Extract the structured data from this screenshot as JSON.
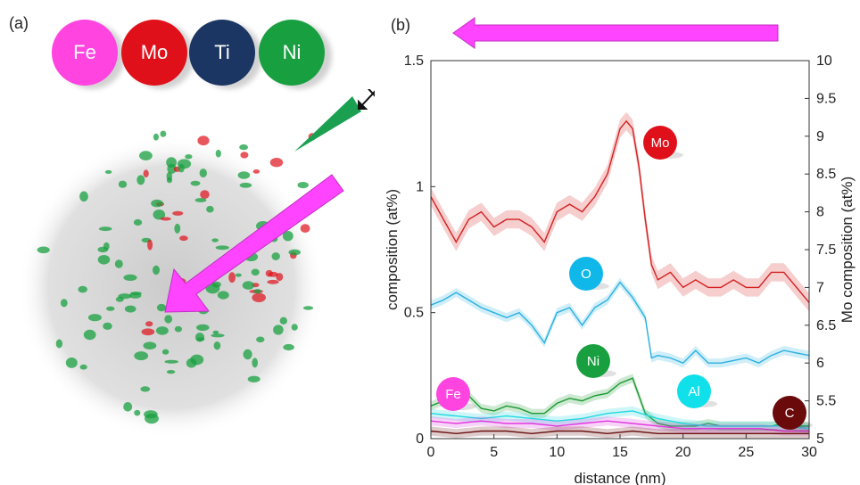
{
  "panel_a": {
    "label": "(a)",
    "elements": [
      {
        "symbol": "Fe",
        "color": "#ff44e0"
      },
      {
        "symbol": "Mo",
        "color": "#e0101a"
      },
      {
        "symbol": "Ti",
        "color": "#1c3664"
      },
      {
        "symbol": "Ni",
        "color": "#18a040"
      }
    ],
    "arrow_color": "#ff44ff",
    "cone_color": "#1aa050"
  },
  "panel_b": {
    "label": "(b)"
  },
  "chart_data": {
    "type": "line",
    "title": "",
    "xlabel": "distance (nm)",
    "ylabel": "composition (at%)",
    "y2label": "Mo composition (at%)",
    "xlim": [
      0,
      30
    ],
    "ylim": [
      0,
      1.5
    ],
    "y2lim": [
      5,
      10
    ],
    "x_ticks": [
      "0",
      "5",
      "10",
      "15",
      "20",
      "25",
      "30"
    ],
    "y_ticks": [
      "0",
      "0.5",
      "1",
      "1.5"
    ],
    "y2_ticks": [
      "5",
      "5.5",
      "6",
      "6.5",
      "7",
      "7.5",
      "8",
      "8.5",
      "9",
      "9.5",
      "10"
    ],
    "grid": false,
    "series": [
      {
        "name": "Mo",
        "axis": "right",
        "color": "#d42020",
        "x": [
          0,
          1,
          2,
          3,
          4,
          5,
          6,
          7,
          8,
          9,
          10,
          11,
          12,
          13,
          14,
          15,
          15.5,
          16,
          16.5,
          17,
          17.5,
          18,
          19,
          20,
          21,
          22,
          23,
          24,
          25,
          26,
          27,
          28,
          29,
          30
        ],
        "y": [
          8.2,
          7.9,
          7.6,
          7.9,
          8.0,
          7.8,
          7.9,
          7.9,
          7.8,
          7.6,
          8.0,
          8.1,
          8.0,
          8.2,
          8.5,
          9.1,
          9.2,
          9.1,
          8.6,
          7.9,
          7.3,
          7.1,
          7.2,
          7.0,
          7.1,
          7.0,
          7.0,
          7.1,
          7.0,
          7.0,
          7.2,
          7.2,
          7.0,
          6.8
        ]
      },
      {
        "name": "O",
        "axis": "left",
        "color": "#2ab0e0",
        "x": [
          0,
          1,
          2,
          3,
          4,
          5,
          6,
          7,
          8,
          9,
          10,
          11,
          12,
          13,
          14,
          15,
          16,
          17,
          17.5,
          18,
          19,
          20,
          21,
          22,
          23,
          24,
          25,
          26,
          27,
          28,
          29,
          30
        ],
        "y": [
          0.53,
          0.55,
          0.58,
          0.55,
          0.52,
          0.5,
          0.48,
          0.5,
          0.45,
          0.38,
          0.5,
          0.52,
          0.45,
          0.52,
          0.55,
          0.62,
          0.56,
          0.48,
          0.32,
          0.33,
          0.32,
          0.3,
          0.35,
          0.3,
          0.3,
          0.31,
          0.32,
          0.3,
          0.33,
          0.35,
          0.34,
          0.33
        ]
      },
      {
        "name": "Ni",
        "axis": "left",
        "color": "#1a9a30",
        "x": [
          0,
          1,
          2,
          3,
          4,
          5,
          6,
          7,
          8,
          9,
          10,
          11,
          12,
          13,
          14,
          15,
          16,
          17,
          18,
          19,
          20,
          21,
          22,
          23,
          24,
          25,
          26,
          27,
          28,
          29,
          30
        ],
        "y": [
          0.13,
          0.15,
          0.18,
          0.17,
          0.12,
          0.11,
          0.13,
          0.12,
          0.1,
          0.1,
          0.14,
          0.16,
          0.15,
          0.17,
          0.18,
          0.22,
          0.24,
          0.1,
          0.06,
          0.05,
          0.05,
          0.05,
          0.06,
          0.05,
          0.05,
          0.05,
          0.05,
          0.05,
          0.06,
          0.05,
          0.05
        ]
      },
      {
        "name": "Al",
        "axis": "left",
        "color": "#22d8e0",
        "x": [
          0,
          2,
          4,
          6,
          8,
          10,
          12,
          14,
          16,
          18,
          20,
          22,
          24,
          26,
          28,
          30
        ],
        "y": [
          0.1,
          0.09,
          0.08,
          0.09,
          0.08,
          0.07,
          0.08,
          0.1,
          0.11,
          0.08,
          0.06,
          0.05,
          0.05,
          0.05,
          0.05,
          0.04
        ]
      },
      {
        "name": "Fe",
        "axis": "left",
        "color": "#e038e0",
        "x": [
          0,
          2,
          4,
          6,
          8,
          10,
          12,
          14,
          16,
          18,
          20,
          22,
          24,
          26,
          28,
          30
        ],
        "y": [
          0.07,
          0.06,
          0.07,
          0.06,
          0.06,
          0.05,
          0.06,
          0.07,
          0.06,
          0.05,
          0.04,
          0.04,
          0.04,
          0.04,
          0.03,
          0.03
        ]
      },
      {
        "name": "C",
        "axis": "left",
        "color": "#6a1010",
        "x": [
          0,
          2,
          4,
          6,
          8,
          10,
          12,
          14,
          16,
          18,
          20,
          22,
          24,
          26,
          28,
          30
        ],
        "y": [
          0.03,
          0.02,
          0.03,
          0.03,
          0.02,
          0.03,
          0.03,
          0.02,
          0.03,
          0.02,
          0.02,
          0.02,
          0.02,
          0.02,
          0.02,
          0.02
        ]
      }
    ],
    "badges": [
      {
        "label": "Mo",
        "color": "#e0101a"
      },
      {
        "label": "O",
        "color": "#10b8ea"
      },
      {
        "label": "Ni",
        "color": "#18a040"
      },
      {
        "label": "Fe",
        "color": "#ff44e0"
      },
      {
        "label": "Al",
        "color": "#10e0ea"
      },
      {
        "label": "C",
        "color": "#6a0a0a"
      }
    ]
  }
}
